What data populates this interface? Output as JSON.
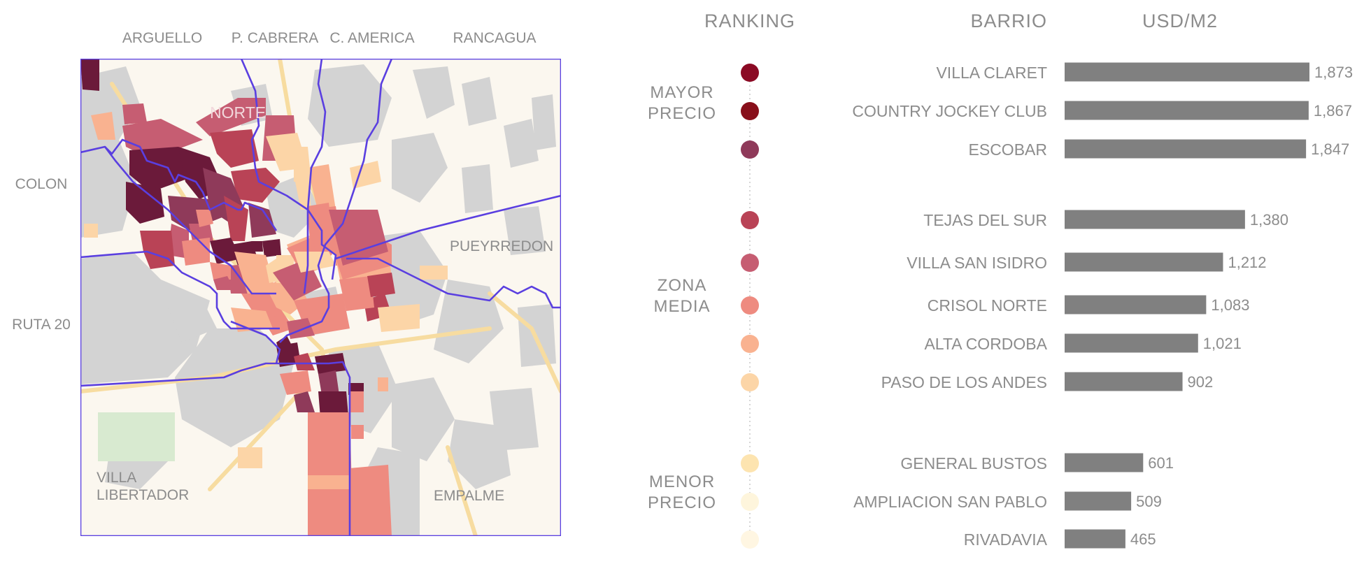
{
  "map": {
    "top_labels": [
      "ARGUELLO",
      "P. CABRERA",
      "C. AMERICA",
      "RANCAGUA"
    ],
    "left_labels": [
      "COLON",
      "RUTA 20"
    ],
    "inner_labels": [
      "NORTE",
      "PUEYRREDON",
      "VILLA",
      "LIBERTADOR",
      "EMPALME"
    ],
    "colors": {
      "boundary": "#5a3fe0",
      "background": "#fbf7ef",
      "gray_blocks": "#d3d3d3",
      "roads": "#f7dca0",
      "park": "#d8ead0"
    }
  },
  "ranking": {
    "header": "RANKING",
    "groups": [
      "MAYOR|PRECIO",
      "ZONA|MEDIA",
      "MENOR|PRECIO"
    ],
    "dot_colors": [
      "#8b0a24",
      "#880f1a",
      "#8f3a5a",
      "#b94356",
      "#c65d72",
      "#ee8b80",
      "#f9b290",
      "#fcd5a7",
      "#fde4b0",
      "#fef5dc",
      "#fff6e2"
    ]
  },
  "chart_data": {
    "type": "bar",
    "orientation": "horizontal",
    "xlabel": "BARRIO",
    "ylabel": "USD/M2",
    "categories": [
      "VILLA CLARET",
      "COUNTRY JOCKEY CLUB",
      "ESCOBAR",
      "TEJAS DEL SUR",
      "VILLA SAN ISIDRO",
      "CRISOL NORTE",
      "ALTA CORDOBA",
      "PASO DE LOS ANDES",
      "GENERAL BUSTOS",
      "AMPLIACION SAN PABLO",
      "RIVADAVIA"
    ],
    "values": [
      1873,
      1867,
      1847,
      1380,
      1212,
      1083,
      1021,
      902,
      601,
      509,
      465
    ],
    "value_labels": [
      "1,873",
      "1,867",
      "1,847",
      "1,380",
      "1,212",
      "1,083",
      "1,021",
      "902",
      "601",
      "509",
      "465"
    ],
    "groups": [
      [
        0,
        1,
        2
      ],
      [
        3,
        4,
        5,
        6,
        7
      ],
      [
        8,
        9,
        10
      ]
    ],
    "bar_color": "#808080",
    "grid": false
  }
}
